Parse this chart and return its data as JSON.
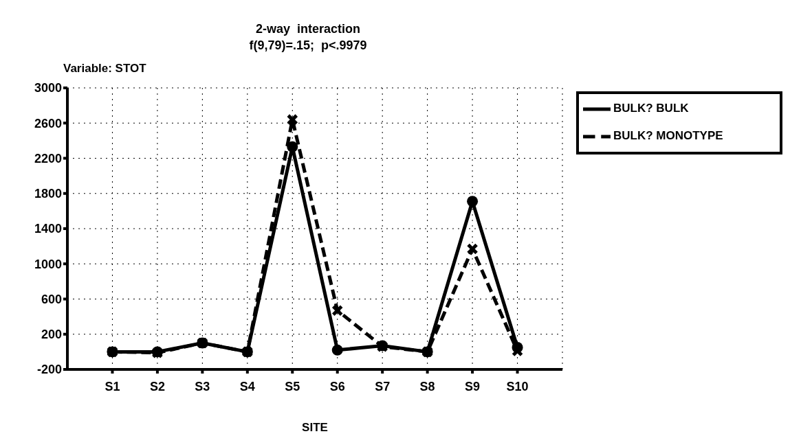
{
  "chart_data": {
    "type": "line",
    "title": "2-way  interaction",
    "subtitle": "f(9,79)=.15;  p<.9979",
    "xlabel": "SITE",
    "annotations": [
      "Variable: STOT"
    ],
    "categories": [
      "S1",
      "S2",
      "S3",
      "S4",
      "S5",
      "S6",
      "S7",
      "S8",
      "S9",
      "S10"
    ],
    "series": [
      {
        "name": "BULK? BULK",
        "color": "#000000",
        "marker": "circle",
        "line_style": "solid",
        "values": [
          0,
          0,
          100,
          0,
          2330,
          20,
          70,
          0,
          1710,
          50
        ]
      },
      {
        "name": "BULK? MONOTYPE",
        "color": "#000000",
        "marker": "cross",
        "line_style": "dashed",
        "values": [
          0,
          -10,
          100,
          0,
          2640,
          470,
          60,
          0,
          1170,
          10
        ]
      }
    ],
    "ylim": [
      -200,
      3000
    ],
    "yticks": [
      -200,
      200,
      600,
      1000,
      1400,
      1800,
      2200,
      2600,
      3000
    ],
    "grid": true,
    "legend": "top right"
  }
}
